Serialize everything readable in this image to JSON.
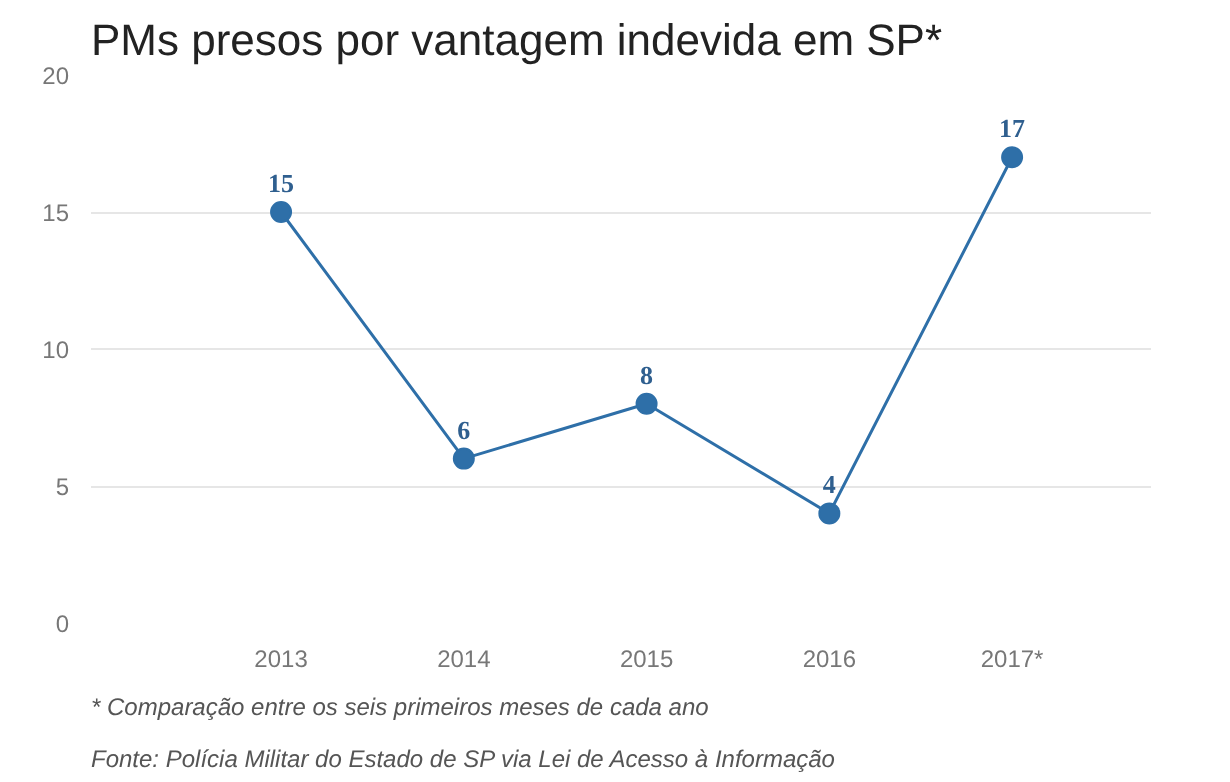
{
  "chart_data": {
    "type": "line",
    "title": "PMs presos por vantagem indevida em SP*",
    "categories": [
      "2013",
      "2014",
      "2015",
      "2016",
      "2017*"
    ],
    "series": [
      {
        "color": "#2e6fa8",
        "values": [
          15,
          6,
          8,
          4,
          17
        ]
      }
    ],
    "ylim": [
      0,
      20
    ],
    "yticks": [
      0,
      5,
      10,
      15,
      20
    ],
    "grid": "y",
    "marker": "circle",
    "line_style": "solid",
    "data_labels": true,
    "annotations": [
      "* Comparação entre os seis primeiros meses de cada ano",
      "Fonte: Polícia Militar do Estado de SP via Lei de Acesso à Informação"
    ]
  }
}
